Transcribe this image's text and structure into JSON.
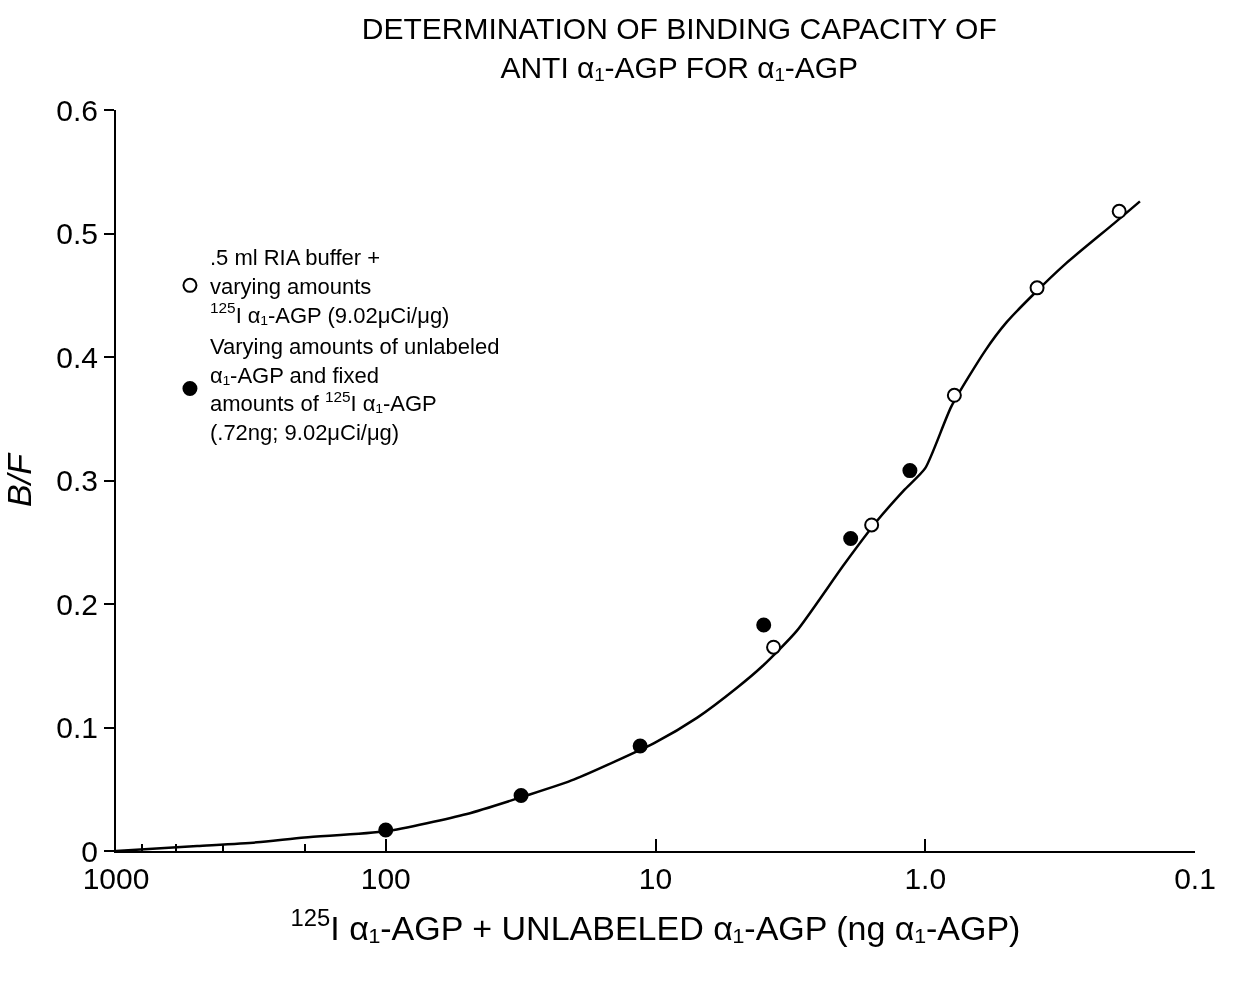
{
  "chart_data": {
    "type": "scatter",
    "title": "DETERMINATION OF BINDING CAPACITY OF\nANTI α₁-AGP FOR α₁-AGP",
    "xlabel": "$^{125}$I α₁-AGP + UNLABELED α₁-AGP (ng α₁-AGP)",
    "ylabel": "B/F",
    "log": "x",
    "xlim": [
      1000,
      0.1
    ],
    "xticks": [
      1000,
      100,
      10,
      {
        "value": 1,
        "label": "1.0"
      },
      0.1
    ],
    "ylim": [
      0,
      0.6
    ],
    "yticks": [
      0,
      0.1,
      0.2,
      0.3,
      0.4,
      0.5,
      0.6
    ],
    "legend": "top left",
    "marker": "circle",
    "series": [
      {
        "type": "line",
        "color": "#000000",
        "line_style": "solid",
        "marker": "none",
        "x": [
          1000,
          500,
          300,
          200,
          100,
          50,
          30,
          20,
          10,
          7,
          5,
          4,
          3,
          2,
          1.5,
          1.2,
          1.0,
          0.8,
          0.6,
          0.5,
          0.4,
          0.3,
          0.2,
          0.16
        ],
        "values": [
          0,
          0.004,
          0.007,
          0.011,
          0.016,
          0.03,
          0.045,
          0.058,
          0.088,
          0.108,
          0.132,
          0.15,
          0.178,
          0.232,
          0.268,
          0.292,
          0.31,
          0.36,
          0.405,
          0.428,
          0.45,
          0.476,
          0.508,
          0.526
        ]
      },
      {
        "name": ".5 ml RIA buffer +\nvarying amounts\n$^{125}$I α₁-AGP (9.02μCi/μg)",
        "color": "#ffffff",
        "x": [
          3.65,
          1.58,
          0.78,
          0.385,
          0.191
        ],
        "values": [
          0.165,
          0.264,
          0.369,
          0.456,
          0.518
        ]
      },
      {
        "name": "Varying amounts of unlabeled\nα₁-AGP and fixed\namounts of $^{125}$I α₁-AGP\n(.72ng; 9.02μCi/μg)",
        "color": "#000000",
        "x": [
          100,
          31.5,
          11.4,
          3.97,
          1.89,
          1.14
        ],
        "values": [
          0.017,
          0.045,
          0.085,
          0.183,
          0.253,
          0.308
        ]
      }
    ]
  }
}
